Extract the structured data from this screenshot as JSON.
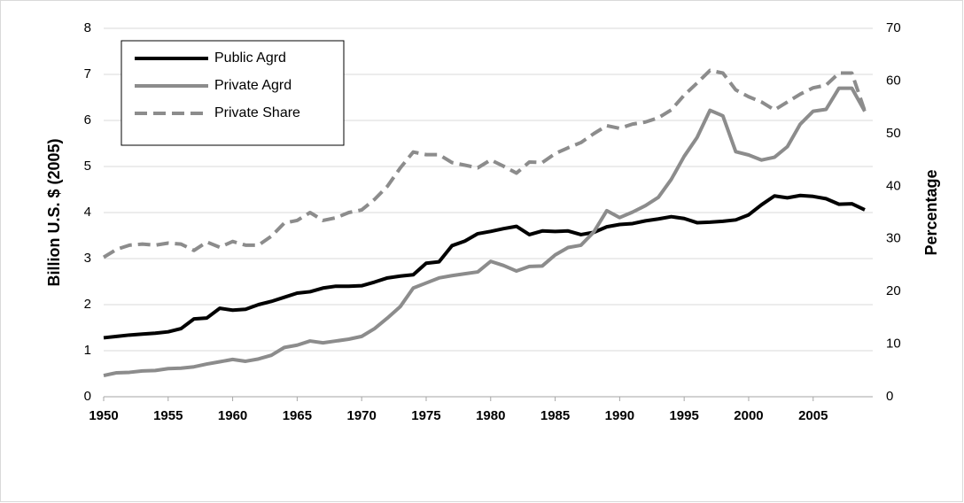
{
  "chart_data": {
    "type": "line",
    "y_label": "Billion U.S. $ (2005)",
    "y2_label": "Percentage",
    "x": [
      1950,
      1951,
      1952,
      1953,
      1954,
      1955,
      1956,
      1957,
      1958,
      1959,
      1960,
      1961,
      1962,
      1963,
      1964,
      1965,
      1966,
      1967,
      1968,
      1969,
      1970,
      1971,
      1972,
      1973,
      1974,
      1975,
      1976,
      1977,
      1978,
      1979,
      1980,
      1981,
      1982,
      1983,
      1984,
      1985,
      1986,
      1987,
      1988,
      1989,
      1990,
      1991,
      1992,
      1993,
      1994,
      1995,
      1996,
      1997,
      1998,
      1999,
      2000,
      2001,
      2002,
      2003,
      2004,
      2005,
      2006,
      2007,
      2008,
      2009
    ],
    "xlim": [
      1950,
      2009
    ],
    "xticks": [
      1950,
      1955,
      1960,
      1965,
      1970,
      1975,
      1980,
      1985,
      1990,
      1995,
      2000,
      2005
    ],
    "ylim": [
      0,
      8
    ],
    "yticks": [
      0,
      1,
      2,
      3,
      4,
      5,
      6,
      7,
      8
    ],
    "y2lim": [
      0,
      70
    ],
    "y2ticks": [
      0,
      10,
      20,
      30,
      40,
      50,
      60,
      70
    ],
    "grid": true,
    "legend": "upper left",
    "series": [
      {
        "name": "Public Agrd",
        "color": "#000000",
        "dash": false,
        "values": [
          1.28,
          1.31,
          1.34,
          1.36,
          1.38,
          1.41,
          1.48,
          1.69,
          1.71,
          1.92,
          1.88,
          1.9,
          2.0,
          2.07,
          2.16,
          2.25,
          2.28,
          2.36,
          2.4,
          2.4,
          2.41,
          2.49,
          2.58,
          2.62,
          2.65,
          2.9,
          2.93,
          3.28,
          3.38,
          3.54,
          3.59,
          3.65,
          3.7,
          3.52,
          3.6,
          3.59,
          3.6,
          3.52,
          3.57,
          3.69,
          3.74,
          3.76,
          3.82,
          3.86,
          3.91,
          3.87,
          3.78,
          3.79,
          3.81,
          3.84,
          3.95,
          4.17,
          4.36,
          4.32,
          4.37,
          4.35,
          4.3,
          4.18,
          4.19,
          4.06
        ]
      },
      {
        "name": "Private Agrd",
        "color": "#8c8c8c",
        "dash": false,
        "values": [
          0.46,
          0.52,
          0.53,
          0.56,
          0.57,
          0.61,
          0.62,
          0.65,
          0.71,
          0.76,
          0.81,
          0.77,
          0.82,
          0.9,
          1.07,
          1.12,
          1.21,
          1.17,
          1.21,
          1.25,
          1.31,
          1.48,
          1.71,
          1.96,
          2.36,
          2.47,
          2.58,
          2.63,
          2.67,
          2.71,
          2.94,
          2.85,
          2.73,
          2.83,
          2.84,
          3.08,
          3.24,
          3.29,
          3.58,
          4.04,
          3.89,
          4.01,
          4.15,
          4.33,
          4.72,
          5.22,
          5.63,
          6.22,
          6.1,
          5.32,
          5.25,
          5.14,
          5.2,
          5.43,
          5.92,
          6.2,
          6.24,
          6.7,
          6.7,
          6.2
        ]
      },
      {
        "name": "Private Share",
        "color": "#8c8c8c",
        "dash": true,
        "axis": "y2",
        "values": [
          26.5,
          28,
          28.8,
          29,
          28.8,
          29.2,
          29,
          27.8,
          29.4,
          28.4,
          29.5,
          28.8,
          28.8,
          30.5,
          33,
          33.5,
          35,
          33.5,
          34,
          35,
          35.5,
          37.5,
          40,
          43.5,
          46.5,
          46,
          46,
          44.5,
          44,
          43.5,
          45,
          43.8,
          42.5,
          44.6,
          44.5,
          46.2,
          47.3,
          48.3,
          50,
          51.5,
          51,
          51.8,
          52.2,
          53,
          54.5,
          57.3,
          59.6,
          62,
          61.5,
          58.3,
          57,
          56,
          54.5,
          56,
          57.5,
          58.7,
          59.2,
          61.5,
          61.5,
          54.3
        ]
      }
    ]
  }
}
